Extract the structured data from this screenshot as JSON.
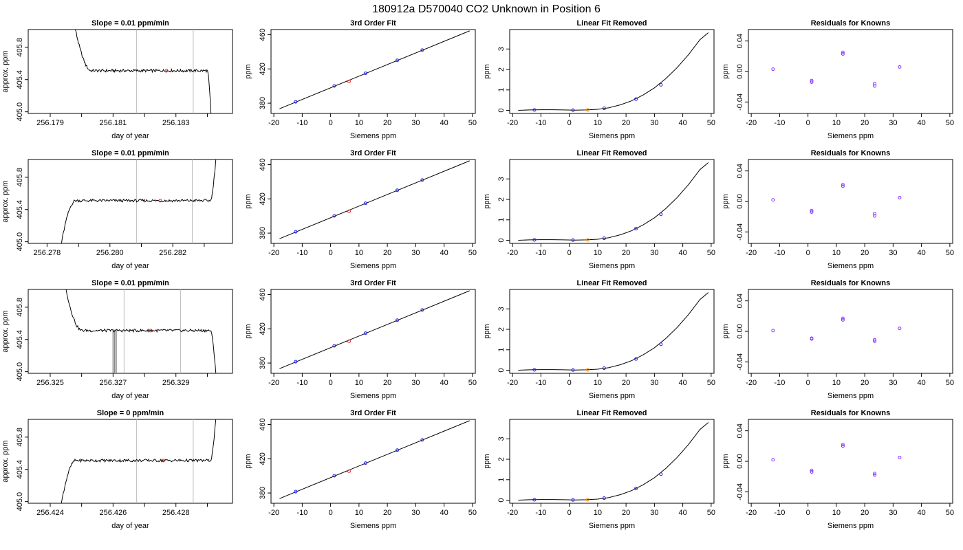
{
  "figure": {
    "title": "180912a     D570040    CO2 Unknown in Position  6"
  },
  "styles": {
    "axis_color": "#000000",
    "vline_color": "#bbbbbb",
    "known_point_color": "#2222ee",
    "residual_point_color": "#8833ff",
    "unknown_fit_color": "#ee2222",
    "unknown_linear_color": "#ee8800"
  },
  "chart_data": [
    {
      "row": 0,
      "panel": "time",
      "type": "line",
      "title": "Slope =  0.01  ppm/min",
      "xlabel": "day of year",
      "ylabel": "approx. ppm",
      "xlim": [
        256.1783,
        256.1848
      ],
      "ylim": [
        404.98,
        406.02
      ],
      "xticks": [
        256.179,
        256.18,
        256.181,
        256.182,
        256.183,
        256.184
      ],
      "xtick_labels": [
        "256.179",
        "",
        "256.181",
        "",
        "256.183",
        ""
      ],
      "yticks": [
        405.0,
        405.4,
        405.8
      ],
      "ytick_labels": [
        "405.0",
        "405.4",
        "405.8"
      ],
      "trace": {
        "x0": 256.1795,
        "x1": 256.1842,
        "plateau": 405.51,
        "lead": "down",
        "trail": "down",
        "rise_end": 256.1803,
        "fall_start": 256.184
      },
      "vlines": [
        256.18175,
        256.18355
      ],
      "marker": {
        "x": 256.1827,
        "y": 405.51
      },
      "spikes": []
    },
    {
      "row": 0,
      "panel": "fit",
      "type": "line",
      "title": "3rd Order Fit",
      "xlabel": "Siemens ppm",
      "ylabel": "ppm",
      "xlim": [
        -21,
        51
      ],
      "ylim": [
        368,
        466
      ],
      "xticks": [
        -20,
        -10,
        0,
        10,
        20,
        30,
        40,
        50
      ],
      "yticks": [
        380,
        420,
        460
      ],
      "line": {
        "x": [
          -18,
          49
        ],
        "y": [
          373.5,
          464.5
        ]
      },
      "known": {
        "x": [
          -12.3,
          1.3,
          12.3,
          23.5,
          32.3
        ],
        "y": [
          381.6,
          400.1,
          414.9,
          430.1,
          442.0
        ]
      },
      "unknown": {
        "x": 6.5,
        "y": 405.5
      }
    },
    {
      "row": 0,
      "panel": "linear_removed",
      "type": "line",
      "title": "Linear Fit Removed",
      "xlabel": "Siemens ppm",
      "ylabel": "ppm",
      "xlim": [
        -21,
        51
      ],
      "ylim": [
        -0.15,
        3.95
      ],
      "xticks": [
        -20,
        -10,
        0,
        10,
        20,
        30,
        40,
        50
      ],
      "yticks": [
        0,
        1,
        2,
        3
      ],
      "curve_x": [
        -18,
        -14,
        -10,
        -6,
        -2,
        2,
        6,
        10,
        14,
        18,
        22,
        26,
        30,
        34,
        38,
        42,
        46,
        49
      ],
      "curve_y": [
        0.0,
        0.02,
        0.03,
        0.03,
        0.02,
        0.01,
        0.02,
        0.05,
        0.13,
        0.27,
        0.47,
        0.75,
        1.1,
        1.55,
        2.09,
        2.72,
        3.45,
        3.8
      ],
      "known": {
        "x": [
          -12.3,
          1.3,
          12.3,
          23.5,
          32.3
        ],
        "y": [
          0.02,
          0.01,
          0.1,
          0.55,
          1.25
        ]
      },
      "unknown": {
        "x": 6.5,
        "y": 0.02
      }
    },
    {
      "row": 0,
      "panel": "residuals",
      "type": "scatter",
      "title": "Residuals for Knowns",
      "xlabel": "Siemens ppm",
      "ylabel": "ppm",
      "xlim": [
        -21,
        51
      ],
      "ylim": [
        -0.055,
        0.055
      ],
      "xticks": [
        -20,
        -10,
        0,
        10,
        20,
        30,
        40,
        50
      ],
      "yticks": [
        -0.04,
        0.0,
        0.04
      ],
      "ytick_labels": [
        "-0.04",
        "0.00",
        "0.04"
      ],
      "points": {
        "x": [
          -12.3,
          1.3,
          1.3,
          12.3,
          12.3,
          23.5,
          23.5,
          32.3
        ],
        "y": [
          0.003,
          -0.012,
          -0.014,
          0.023,
          0.025,
          -0.016,
          -0.019,
          0.006
        ]
      }
    },
    {
      "row": 1,
      "panel": "time",
      "type": "line",
      "title": "Slope =  0.01  ppm/min",
      "xlabel": "day of year",
      "ylabel": "approx. ppm",
      "xlim": [
        256.2774,
        256.2839
      ],
      "ylim": [
        404.98,
        406.02
      ],
      "xticks": [
        256.278,
        256.279,
        256.28,
        256.281,
        256.282,
        256.283
      ],
      "xtick_labels": [
        "256.278",
        "",
        "256.280",
        "",
        "256.282",
        ""
      ],
      "yticks": [
        405.0,
        405.4,
        405.8
      ],
      "ytick_labels": [
        "405.0",
        "405.4",
        "405.8"
      ],
      "trace": {
        "x0": 256.2782,
        "x1": 256.2835,
        "plateau": 405.51,
        "lead": "up",
        "trail": "up",
        "rise_end": 256.2789,
        "fall_start": 256.2832
      },
      "vlines": [
        256.28085,
        256.28262
      ],
      "marker": {
        "x": 256.2816,
        "y": 405.51
      },
      "spikes": []
    },
    {
      "row": 1,
      "panel": "fit",
      "type": "line",
      "title": "3rd Order Fit",
      "xlabel": "Siemens ppm",
      "ylabel": "ppm",
      "xlim": [
        -21,
        51
      ],
      "ylim": [
        368,
        466
      ],
      "xticks": [
        -20,
        -10,
        0,
        10,
        20,
        30,
        40,
        50
      ],
      "yticks": [
        380,
        420,
        460
      ],
      "line": {
        "x": [
          -18,
          49
        ],
        "y": [
          373.5,
          464.5
        ]
      },
      "known": {
        "x": [
          -12.3,
          1.3,
          12.3,
          23.5,
          32.3
        ],
        "y": [
          381.6,
          400.1,
          414.9,
          430.1,
          442.0
        ]
      },
      "unknown": {
        "x": 6.5,
        "y": 405.5
      }
    },
    {
      "row": 1,
      "panel": "linear_removed",
      "type": "line",
      "title": "Linear Fit Removed",
      "xlabel": "Siemens ppm",
      "ylabel": "ppm",
      "xlim": [
        -21,
        51
      ],
      "ylim": [
        -0.15,
        3.95
      ],
      "xticks": [
        -20,
        -10,
        0,
        10,
        20,
        30,
        40,
        50
      ],
      "yticks": [
        0,
        1,
        2,
        3
      ],
      "curve_x": [
        -18,
        -14,
        -10,
        -6,
        -2,
        2,
        6,
        10,
        14,
        18,
        22,
        26,
        30,
        34,
        38,
        42,
        46,
        49
      ],
      "curve_y": [
        0.0,
        0.02,
        0.03,
        0.03,
        0.02,
        0.01,
        0.02,
        0.05,
        0.13,
        0.27,
        0.47,
        0.75,
        1.1,
        1.55,
        2.09,
        2.72,
        3.45,
        3.8
      ],
      "known": {
        "x": [
          -12.3,
          1.3,
          12.3,
          23.5,
          32.3
        ],
        "y": [
          0.02,
          0.01,
          0.1,
          0.57,
          1.27
        ]
      },
      "unknown": {
        "x": 6.5,
        "y": 0.02
      }
    },
    {
      "row": 1,
      "panel": "residuals",
      "type": "scatter",
      "title": "Residuals for Knowns",
      "xlabel": "Siemens ppm",
      "ylabel": "ppm",
      "xlim": [
        -21,
        51
      ],
      "ylim": [
        -0.055,
        0.055
      ],
      "xticks": [
        -20,
        -10,
        0,
        10,
        20,
        30,
        40,
        50
      ],
      "yticks": [
        -0.04,
        0.0,
        0.04
      ],
      "ytick_labels": [
        "-0.04",
        "0.00",
        "0.04"
      ],
      "points": {
        "x": [
          -12.3,
          1.3,
          1.3,
          12.3,
          12.3,
          23.5,
          23.5,
          32.3
        ],
        "y": [
          0.002,
          -0.012,
          -0.014,
          0.02,
          0.022,
          -0.016,
          -0.019,
          0.005
        ]
      }
    },
    {
      "row": 2,
      "panel": "time",
      "type": "line",
      "title": "Slope =  0.01  ppm/min",
      "xlabel": "day of year",
      "ylabel": "approx. ppm",
      "xlim": [
        256.3243,
        256.3308
      ],
      "ylim": [
        404.98,
        406.02
      ],
      "xticks": [
        256.325,
        256.326,
        256.327,
        256.328,
        256.329,
        256.33
      ],
      "xtick_labels": [
        "256.325",
        "",
        "256.327",
        "",
        "256.329",
        ""
      ],
      "yticks": [
        405.0,
        405.4,
        405.8
      ],
      "ytick_labels": [
        "405.0",
        "405.4",
        "405.8"
      ],
      "trace": {
        "x0": 256.3252,
        "x1": 256.3304,
        "plateau": 405.51,
        "lead": "down",
        "trail": "down",
        "rise_end": 256.326,
        "fall_start": 256.3301
      },
      "vlines": [
        256.32735,
        256.32915
      ],
      "marker": {
        "x": 256.3282,
        "y": 405.51
      },
      "spikes": [
        256.327,
        256.32705,
        256.3271
      ]
    },
    {
      "row": 2,
      "panel": "fit",
      "type": "line",
      "title": "3rd Order Fit",
      "xlabel": "Siemens ppm",
      "ylabel": "ppm",
      "xlim": [
        -21,
        51
      ],
      "ylim": [
        368,
        466
      ],
      "xticks": [
        -20,
        -10,
        0,
        10,
        20,
        30,
        40,
        50
      ],
      "yticks": [
        380,
        420,
        460
      ],
      "line": {
        "x": [
          -18,
          49
        ],
        "y": [
          373.5,
          464.5
        ]
      },
      "known": {
        "x": [
          -12.3,
          1.3,
          12.3,
          23.5,
          32.3
        ],
        "y": [
          381.6,
          400.1,
          414.9,
          430.1,
          442.0
        ]
      },
      "unknown": {
        "x": 6.5,
        "y": 405.5
      }
    },
    {
      "row": 2,
      "panel": "linear_removed",
      "type": "line",
      "title": "Linear Fit Removed",
      "xlabel": "Siemens ppm",
      "ylabel": "ppm",
      "xlim": [
        -21,
        51
      ],
      "ylim": [
        -0.15,
        3.95
      ],
      "xticks": [
        -20,
        -10,
        0,
        10,
        20,
        30,
        40,
        50
      ],
      "yticks": [
        0,
        1,
        2,
        3
      ],
      "curve_x": [
        -18,
        -14,
        -10,
        -6,
        -2,
        2,
        6,
        10,
        14,
        18,
        22,
        26,
        30,
        34,
        38,
        42,
        46,
        49
      ],
      "curve_y": [
        0.0,
        0.02,
        0.03,
        0.03,
        0.02,
        0.01,
        0.02,
        0.05,
        0.13,
        0.27,
        0.47,
        0.75,
        1.1,
        1.55,
        2.09,
        2.72,
        3.45,
        3.8
      ],
      "known": {
        "x": [
          -12.3,
          1.3,
          12.3,
          23.5,
          32.3
        ],
        "y": [
          0.02,
          0.01,
          0.1,
          0.55,
          1.27
        ]
      },
      "unknown": {
        "x": 6.5,
        "y": 0.02
      }
    },
    {
      "row": 2,
      "panel": "residuals",
      "type": "scatter",
      "title": "Residuals for Knowns",
      "xlabel": "Siemens ppm",
      "ylabel": "ppm",
      "xlim": [
        -21,
        51
      ],
      "ylim": [
        -0.055,
        0.055
      ],
      "xticks": [
        -20,
        -10,
        0,
        10,
        20,
        30,
        40,
        50
      ],
      "yticks": [
        -0.04,
        0.0,
        0.04
      ],
      "ytick_labels": [
        "-0.04",
        "0.00",
        "0.04"
      ],
      "points": {
        "x": [
          -12.3,
          1.3,
          1.3,
          12.3,
          12.3,
          23.5,
          23.5,
          32.3
        ],
        "y": [
          0.001,
          -0.009,
          -0.01,
          0.015,
          0.017,
          -0.011,
          -0.013,
          0.004
        ]
      }
    },
    {
      "row": 3,
      "panel": "time",
      "type": "line",
      "title": "Slope =  0  ppm/min",
      "xlabel": "day of year",
      "ylabel": "approx. ppm",
      "xlim": [
        256.4233,
        256.4298
      ],
      "ylim": [
        404.98,
        406.02
      ],
      "xticks": [
        256.424,
        256.425,
        256.426,
        256.427,
        256.428,
        256.429
      ],
      "xtick_labels": [
        "256.424",
        "",
        "256.426",
        "",
        "256.428",
        ""
      ],
      "yticks": [
        405.0,
        405.4,
        405.8
      ],
      "ytick_labels": [
        "405.0",
        "405.4",
        "405.8"
      ],
      "trace": {
        "x0": 256.4241,
        "x1": 256.4294,
        "plateau": 405.51,
        "lead": "up",
        "trail": "up",
        "rise_end": 256.4248,
        "fall_start": 256.4291
      },
      "vlines": [
        256.42675,
        256.42855
      ],
      "marker": {
        "x": 256.4276,
        "y": 405.51
      },
      "spikes": []
    },
    {
      "row": 3,
      "panel": "fit",
      "type": "line",
      "title": "3rd Order Fit",
      "xlabel": "Siemens ppm",
      "ylabel": "ppm",
      "xlim": [
        -21,
        51
      ],
      "ylim": [
        368,
        466
      ],
      "xticks": [
        -20,
        -10,
        0,
        10,
        20,
        30,
        40,
        50
      ],
      "yticks": [
        380,
        420,
        460
      ],
      "line": {
        "x": [
          -18,
          49
        ],
        "y": [
          373.5,
          464.5
        ]
      },
      "known": {
        "x": [
          -12.3,
          1.3,
          12.3,
          23.5,
          32.3
        ],
        "y": [
          381.6,
          400.1,
          414.9,
          430.1,
          442.0
        ]
      },
      "unknown": {
        "x": 6.5,
        "y": 405.5
      }
    },
    {
      "row": 3,
      "panel": "linear_removed",
      "type": "line",
      "title": "Linear Fit Removed",
      "xlabel": "Siemens ppm",
      "ylabel": "ppm",
      "xlim": [
        -21,
        51
      ],
      "ylim": [
        -0.15,
        3.95
      ],
      "xticks": [
        -20,
        -10,
        0,
        10,
        20,
        30,
        40,
        50
      ],
      "yticks": [
        0,
        1,
        2,
        3
      ],
      "curve_x": [
        -18,
        -14,
        -10,
        -6,
        -2,
        2,
        6,
        10,
        14,
        18,
        22,
        26,
        30,
        34,
        38,
        42,
        46,
        49
      ],
      "curve_y": [
        0.0,
        0.02,
        0.03,
        0.03,
        0.02,
        0.01,
        0.02,
        0.05,
        0.13,
        0.27,
        0.47,
        0.75,
        1.1,
        1.55,
        2.09,
        2.72,
        3.45,
        3.8
      ],
      "known": {
        "x": [
          -12.3,
          1.3,
          12.3,
          23.5,
          32.3
        ],
        "y": [
          0.02,
          0.01,
          0.1,
          0.57,
          1.27
        ]
      },
      "unknown": {
        "x": 6.5,
        "y": 0.02
      }
    },
    {
      "row": 3,
      "panel": "residuals",
      "type": "scatter",
      "title": "Residuals for Knowns",
      "xlabel": "Siemens ppm",
      "ylabel": "ppm",
      "xlim": [
        -21,
        51
      ],
      "ylim": [
        -0.055,
        0.055
      ],
      "xticks": [
        -20,
        -10,
        0,
        10,
        20,
        30,
        40,
        50
      ],
      "yticks": [
        -0.04,
        0.0,
        0.04
      ],
      "ytick_labels": [
        "-0.04",
        "0.00",
        "0.04"
      ],
      "points": {
        "x": [
          -12.3,
          1.3,
          1.3,
          12.3,
          12.3,
          23.5,
          23.5,
          32.3
        ],
        "y": [
          0.002,
          -0.012,
          -0.014,
          0.02,
          0.022,
          -0.016,
          -0.018,
          0.005
        ]
      }
    }
  ]
}
